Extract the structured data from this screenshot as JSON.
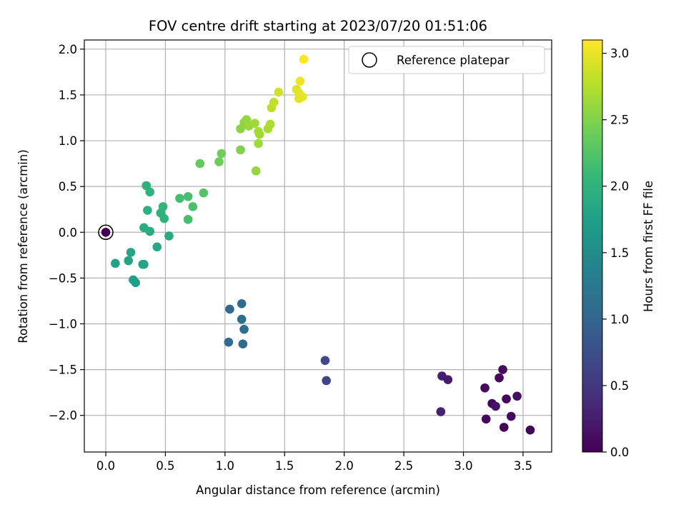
{
  "chart_data": {
    "type": "scatter",
    "title": "FOV centre drift starting at 2023/07/20 01:51:06",
    "xlabel": "Angular distance from reference (arcmin)",
    "ylabel": "Rotation from reference (arcmin)",
    "xlim": [
      -0.18,
      3.74
    ],
    "ylim": [
      -2.4,
      2.1
    ],
    "xticks": [
      "0.0",
      "0.5",
      "1.0",
      "1.5",
      "2.0",
      "2.5",
      "3.0",
      "3.5"
    ],
    "xtick_values": [
      0,
      0.5,
      1.0,
      1.5,
      2.0,
      2.5,
      3.0,
      3.5
    ],
    "yticks": [
      "2.0",
      "1.5",
      "1.0",
      "0.5",
      "0.0",
      "−0.5",
      "−1.0",
      "−1.5",
      "−2.0"
    ],
    "ytick_values": [
      2.0,
      1.5,
      1.0,
      0.5,
      0.0,
      -0.5,
      -1.0,
      -1.5,
      -2.0
    ],
    "grid": true,
    "legend": {
      "position": "top-right",
      "entries": [
        "Reference platepar"
      ]
    },
    "reference_point": {
      "x": 0.0,
      "y": 0.0,
      "c": 0.0
    },
    "colorbar": {
      "label": "Hours from first FF file",
      "range": [
        0.0,
        3.1
      ],
      "ticks": [
        "0.0",
        "0.5",
        "1.0",
        "1.5",
        "2.0",
        "2.5",
        "3.0"
      ],
      "tick_values": [
        0.0,
        0.5,
        1.0,
        1.5,
        2.0,
        2.5,
        3.0
      ],
      "colormap": "viridis"
    },
    "points": [
      {
        "x": 3.33,
        "y": -1.5,
        "c": 0.1
      },
      {
        "x": 3.3,
        "y": -1.59,
        "c": 0.05
      },
      {
        "x": 3.18,
        "y": -1.7,
        "c": 0.08
      },
      {
        "x": 3.45,
        "y": -1.79,
        "c": 0.12
      },
      {
        "x": 3.36,
        "y": -1.82,
        "c": 0.06
      },
      {
        "x": 3.24,
        "y": -1.87,
        "c": 0.04
      },
      {
        "x": 3.27,
        "y": -1.9,
        "c": 0.15
      },
      {
        "x": 3.4,
        "y": -2.01,
        "c": 0.09
      },
      {
        "x": 3.19,
        "y": -2.04,
        "c": 0.07
      },
      {
        "x": 3.34,
        "y": -2.13,
        "c": 0.03
      },
      {
        "x": 3.56,
        "y": -2.16,
        "c": 0.02
      },
      {
        "x": 2.82,
        "y": -1.57,
        "c": 0.25
      },
      {
        "x": 2.87,
        "y": -1.61,
        "c": 0.22
      },
      {
        "x": 2.81,
        "y": -1.96,
        "c": 0.28
      },
      {
        "x": 1.84,
        "y": -1.4,
        "c": 0.7
      },
      {
        "x": 1.85,
        "y": -1.62,
        "c": 0.65
      },
      {
        "x": 1.14,
        "y": -0.78,
        "c": 1.1
      },
      {
        "x": 1.04,
        "y": -0.84,
        "c": 1.05
      },
      {
        "x": 1.14,
        "y": -0.95,
        "c": 1.12
      },
      {
        "x": 1.16,
        "y": -1.06,
        "c": 1.08
      },
      {
        "x": 1.03,
        "y": -1.2,
        "c": 1.06
      },
      {
        "x": 1.15,
        "y": -1.22,
        "c": 1.09
      },
      {
        "x": 0.08,
        "y": -0.34,
        "c": 1.78
      },
      {
        "x": 0.19,
        "y": -0.31,
        "c": 1.8
      },
      {
        "x": 0.21,
        "y": -0.22,
        "c": 1.82
      },
      {
        "x": 0.31,
        "y": -0.35,
        "c": 1.79
      },
      {
        "x": 0.32,
        "y": -0.35,
        "c": 1.8
      },
      {
        "x": 0.23,
        "y": -0.52,
        "c": 1.76
      },
      {
        "x": 0.25,
        "y": -0.55,
        "c": 1.75
      },
      {
        "x": 0.43,
        "y": -0.16,
        "c": 1.85
      },
      {
        "x": 0.53,
        "y": -0.04,
        "c": 1.88
      },
      {
        "x": 0.32,
        "y": 0.05,
        "c": 1.9
      },
      {
        "x": 0.37,
        "y": 0.01,
        "c": 1.92
      },
      {
        "x": 0.35,
        "y": 0.24,
        "c": 1.95
      },
      {
        "x": 0.46,
        "y": 0.21,
        "c": 1.97
      },
      {
        "x": 0.49,
        "y": 0.15,
        "c": 2.0
      },
      {
        "x": 0.48,
        "y": 0.28,
        "c": 2.02
      },
      {
        "x": 0.34,
        "y": 0.51,
        "c": 1.98
      },
      {
        "x": 0.37,
        "y": 0.44,
        "c": 2.0
      },
      {
        "x": 0.62,
        "y": 0.37,
        "c": 2.15
      },
      {
        "x": 0.69,
        "y": 0.39,
        "c": 2.18
      },
      {
        "x": 0.73,
        "y": 0.28,
        "c": 2.2
      },
      {
        "x": 0.69,
        "y": 0.14,
        "c": 2.17
      },
      {
        "x": 0.82,
        "y": 0.43,
        "c": 2.25
      },
      {
        "x": 0.79,
        "y": 0.75,
        "c": 2.35
      },
      {
        "x": 0.95,
        "y": 0.77,
        "c": 2.4
      },
      {
        "x": 0.97,
        "y": 0.86,
        "c": 2.42
      },
      {
        "x": 1.13,
        "y": 0.9,
        "c": 2.5
      },
      {
        "x": 1.26,
        "y": 0.67,
        "c": 2.6
      },
      {
        "x": 1.13,
        "y": 1.13,
        "c": 2.55
      },
      {
        "x": 1.16,
        "y": 1.2,
        "c": 2.58
      },
      {
        "x": 1.18,
        "y": 1.23,
        "c": 2.6
      },
      {
        "x": 1.2,
        "y": 1.16,
        "c": 2.62
      },
      {
        "x": 1.25,
        "y": 1.19,
        "c": 2.65
      },
      {
        "x": 1.28,
        "y": 1.1,
        "c": 2.68
      },
      {
        "x": 1.29,
        "y": 1.07,
        "c": 2.66
      },
      {
        "x": 1.28,
        "y": 0.97,
        "c": 2.64
      },
      {
        "x": 1.36,
        "y": 1.13,
        "c": 2.7
      },
      {
        "x": 1.38,
        "y": 1.18,
        "c": 2.72
      },
      {
        "x": 1.39,
        "y": 1.36,
        "c": 2.8
      },
      {
        "x": 1.41,
        "y": 1.42,
        "c": 2.82
      },
      {
        "x": 1.45,
        "y": 1.53,
        "c": 2.88
      },
      {
        "x": 1.6,
        "y": 1.56,
        "c": 2.95
      },
      {
        "x": 1.62,
        "y": 1.52,
        "c": 2.97
      },
      {
        "x": 1.62,
        "y": 1.46,
        "c": 2.98
      },
      {
        "x": 1.65,
        "y": 1.48,
        "c": 2.99
      },
      {
        "x": 1.63,
        "y": 1.65,
        "c": 3.02
      },
      {
        "x": 1.66,
        "y": 1.89,
        "c": 3.1
      }
    ]
  }
}
